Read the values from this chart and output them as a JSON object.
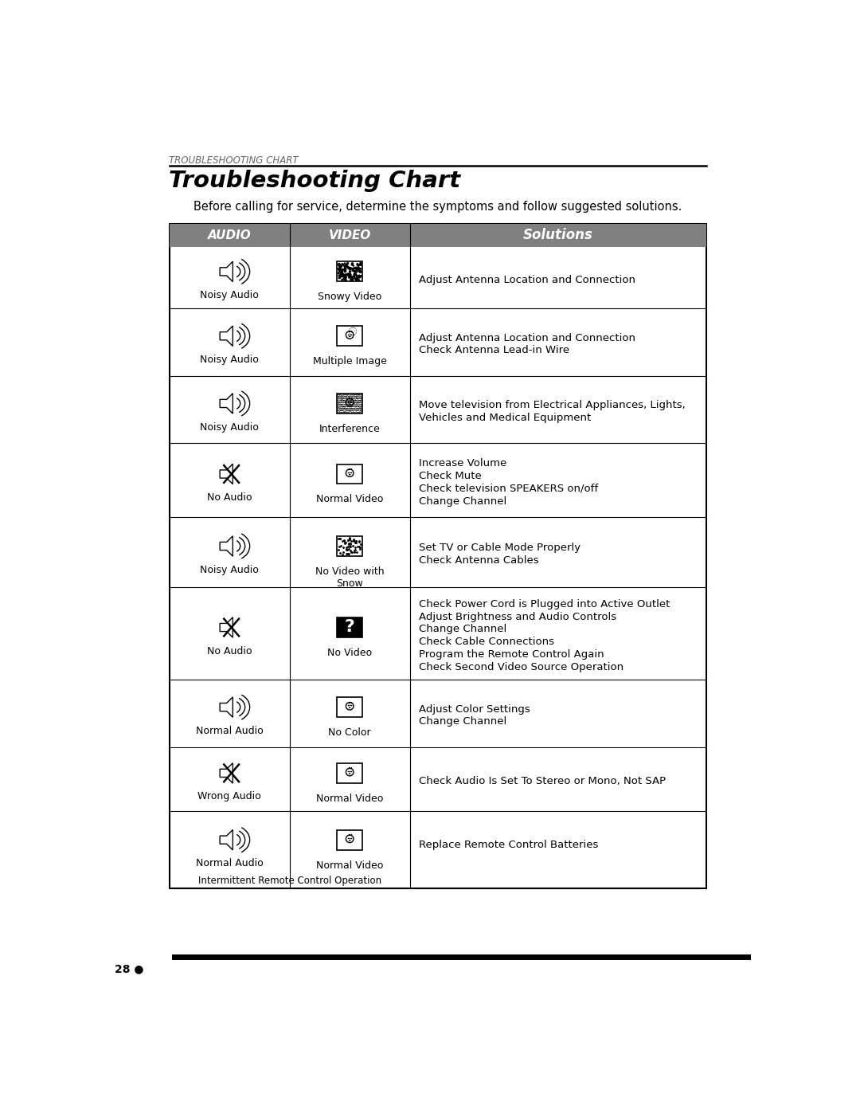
{
  "page_title_small": "TROUBLESHOOTING CHART",
  "page_title_large": "Troubleshooting Chart",
  "subtitle": "Before calling for service, determine the symptoms and follow suggested solutions.",
  "col_headers": [
    "AUDIO",
    "VIDEO",
    "Solutions"
  ],
  "header_bg": "#808080",
  "page_number": "28",
  "rows": [
    {
      "audio_label": "Noisy Audio",
      "audio_type": "noisy",
      "video_label": "Snowy Video",
      "video_type": "snowy",
      "solutions": [
        "Adjust Antenna Location and Connection"
      ]
    },
    {
      "audio_label": "Noisy Audio",
      "audio_type": "noisy",
      "video_label": "Multiple Image",
      "video_type": "multiple",
      "solutions": [
        "Adjust Antenna Location and Connection",
        "Check Antenna Lead-in Wire"
      ]
    },
    {
      "audio_label": "Noisy Audio",
      "audio_type": "noisy",
      "video_label": "Interference",
      "video_type": "interference",
      "solutions": [
        "Move television from Electrical Appliances, Lights,",
        "Vehicles and Medical Equipment"
      ]
    },
    {
      "audio_label": "No Audio",
      "audio_type": "no_audio",
      "video_label": "Normal Video",
      "video_type": "normal",
      "solutions": [
        "Increase Volume",
        "Check Mute",
        "Check television SPEAKERS on/off",
        "Change Channel"
      ]
    },
    {
      "audio_label": "Noisy Audio",
      "audio_type": "noisy",
      "video_label": "No Video with\nSnow",
      "video_type": "snow",
      "solutions": [
        "Set TV or Cable Mode Properly",
        "Check Antenna Cables"
      ]
    },
    {
      "audio_label": "No Audio",
      "audio_type": "no_audio",
      "video_label": "No Video",
      "video_type": "no_video",
      "solutions": [
        "Check Power Cord is Plugged into Active Outlet",
        "Adjust Brightness and Audio Controls",
        "Change Channel",
        "Check Cable Connections",
        "Program the Remote Control Again",
        "Check Second Video Source Operation"
      ]
    },
    {
      "audio_label": "Normal Audio",
      "audio_type": "noisy",
      "video_label": "No Color",
      "video_type": "no_color",
      "solutions": [
        "Adjust Color Settings",
        "Change Channel"
      ]
    },
    {
      "audio_label": "Wrong Audio",
      "audio_type": "no_audio",
      "video_label": "Normal Video",
      "video_type": "normal",
      "solutions": [
        "Check Audio Is Set To Stereo or Mono, Not SAP"
      ]
    },
    {
      "audio_label": "Normal Audio",
      "audio_type": "noisy",
      "video_label": "Normal Video",
      "video_type": "normal",
      "extra_label": "Intermittent Remote Control Operation",
      "solutions": [
        "Replace Remote Control Batteries"
      ]
    }
  ]
}
